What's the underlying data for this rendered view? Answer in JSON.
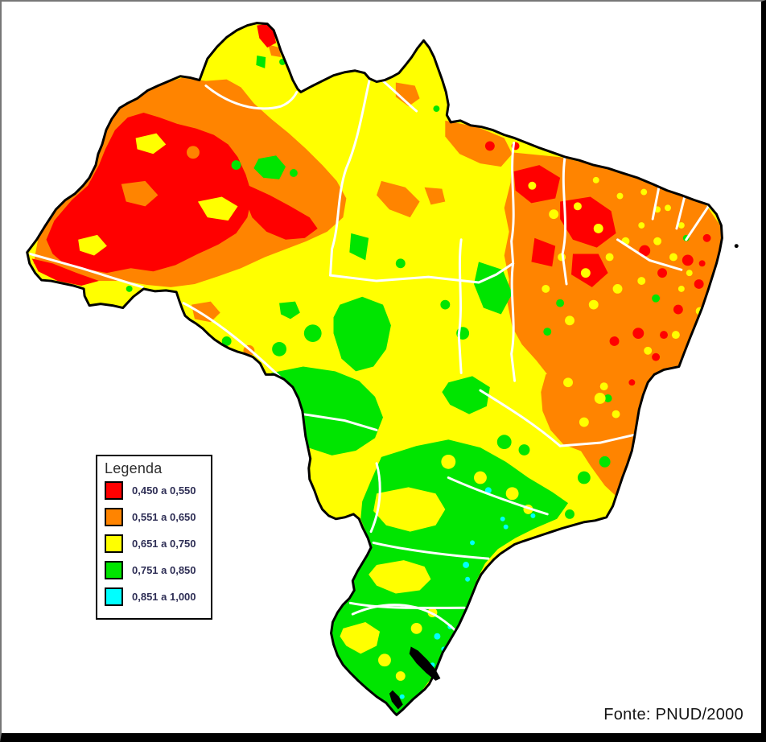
{
  "legend": {
    "title": "Legenda",
    "items": [
      {
        "label": "0,450 a 0,550",
        "color": "#FF0000",
        "key": "red"
      },
      {
        "label": "0,551 a 0,650",
        "color": "#FF8400",
        "key": "orange"
      },
      {
        "label": "0,651 a 0,750",
        "color": "#FFFF00",
        "key": "yellow"
      },
      {
        "label": "0,751 a 0,850",
        "color": "#00E500",
        "key": "green"
      },
      {
        "label": "0,851 a 1,000",
        "color": "#00FFFF",
        "key": "cyan"
      }
    ]
  },
  "source": {
    "label": "Fonte: PNUD/2000"
  },
  "map": {
    "palette": {
      "red": "#FF0000",
      "orange": "#FF8400",
      "yellow": "#FFFF00",
      "green": "#00E500",
      "cyan": "#00FFFF",
      "outline": "#000000",
      "state_border": "#FFFFFF",
      "background": "#FFFFFF"
    }
  }
}
